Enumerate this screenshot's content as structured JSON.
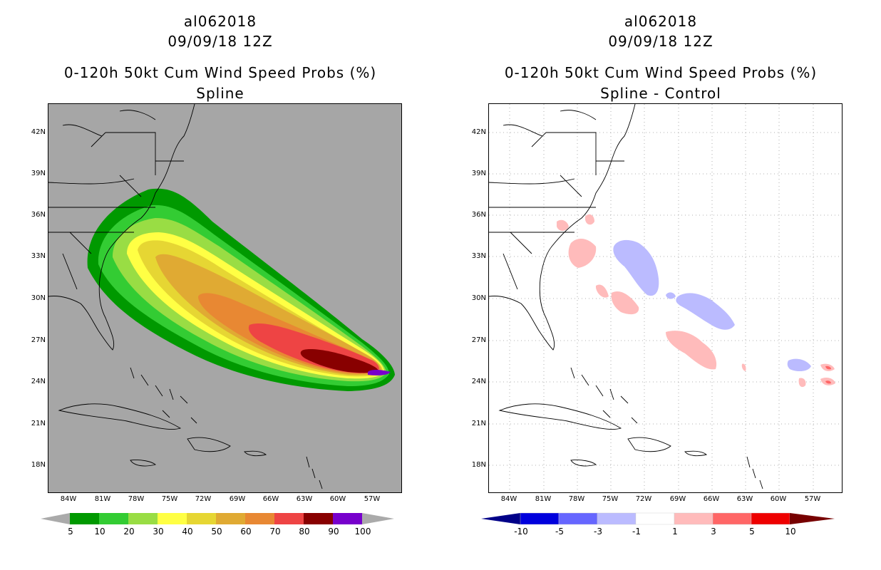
{
  "left_panel": {
    "storm_id": "al062018",
    "datetime": "09/09/18 12Z",
    "product": "0-120h 50kt Cum Wind Speed Probs (%)",
    "method": "Spline",
    "lat_labels": [
      "42N",
      "39N",
      "36N",
      "33N",
      "30N",
      "27N",
      "24N",
      "21N",
      "18N"
    ],
    "lon_labels": [
      "84W",
      "81W",
      "78W",
      "75W",
      "72W",
      "69W",
      "66W",
      "63W",
      "60W",
      "57W"
    ],
    "colorbar": {
      "labels": [
        "5",
        "10",
        "20",
        "30",
        "40",
        "50",
        "60",
        "70",
        "80",
        "90",
        "100"
      ],
      "colors": [
        "#009900",
        "#33cc33",
        "#99dd44",
        "#ffff44",
        "#e6d633",
        "#e0aa33",
        "#e88833",
        "#ee4444",
        "#880000",
        "#7700cc"
      ],
      "end_color": "#aaaaaa"
    }
  },
  "right_panel": {
    "storm_id": "al062018",
    "datetime": "09/09/18 12Z",
    "product": "0-120h 50kt Cum Wind Speed Probs (%)",
    "method": "Spline - Control",
    "lat_labels": [
      "42N",
      "39N",
      "36N",
      "33N",
      "30N",
      "27N",
      "24N",
      "21N",
      "18N"
    ],
    "lon_labels": [
      "84W",
      "81W",
      "78W",
      "75W",
      "72W",
      "69W",
      "66W",
      "63W",
      "60W",
      "57W"
    ],
    "colorbar": {
      "labels": [
        "-10",
        "-5",
        "-3",
        "-1",
        "1",
        "3",
        "5",
        "10"
      ],
      "colors": [
        "#0000dd",
        "#6666ff",
        "#bbbbff",
        "#ffffff",
        "#ffbbbb",
        "#ff6666",
        "#ee0000"
      ],
      "low_end_color": "#000088",
      "high_end_color": "#770000"
    }
  }
}
